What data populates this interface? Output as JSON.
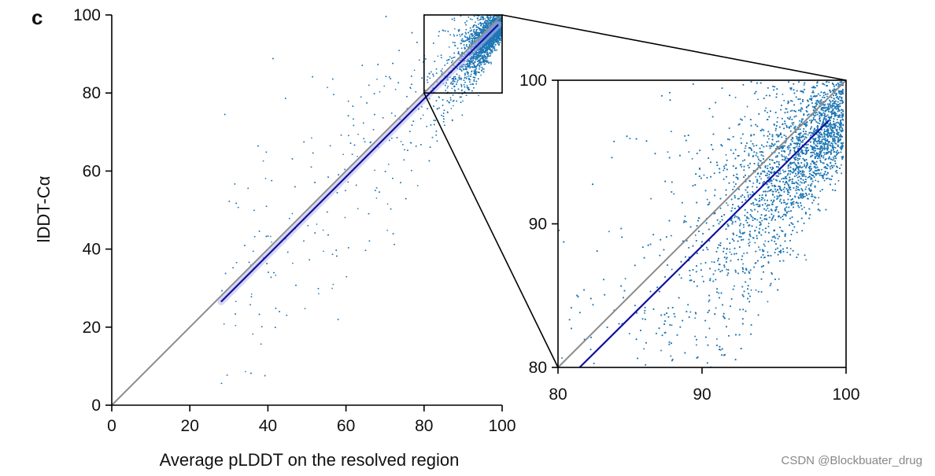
{
  "panel_label": "c",
  "watermark": "CSDN @Blockbuater_drug",
  "chart_data": [
    {
      "type": "scatter",
      "name": "main",
      "title": "",
      "xlabel": "Average pLDDT on the resolved region",
      "ylabel": "lDDT-Cα",
      "xlim": [
        0,
        100
      ],
      "ylim": [
        0,
        100
      ],
      "xticks": [
        "0",
        "20",
        "40",
        "60",
        "80",
        "100"
      ],
      "yticks": [
        "0",
        "20",
        "40",
        "60",
        "80",
        "100"
      ],
      "grid": false,
      "point_color": "#1f77b4",
      "series": [
        {
          "name": "identity",
          "type": "line",
          "color": "#8c8c8c",
          "x": [
            0,
            100
          ],
          "y": [
            0,
            100
          ]
        },
        {
          "name": "fit",
          "type": "line",
          "color": "#10109e",
          "x": [
            28,
            99
          ],
          "y": [
            26.5,
            97.5
          ]
        }
      ],
      "zoom_box": {
        "x": [
          80,
          100
        ],
        "y": [
          80,
          100
        ]
      }
    },
    {
      "type": "scatter",
      "name": "inset",
      "title": "",
      "xlim": [
        80,
        100
      ],
      "ylim": [
        80,
        100
      ],
      "xticks": [
        "80",
        "90",
        "100"
      ],
      "yticks": [
        "80",
        "90",
        "100"
      ],
      "grid": false,
      "point_color": "#1f77b4",
      "series": [
        {
          "name": "identity",
          "type": "line",
          "color": "#8c8c8c",
          "x": [
            80,
            100
          ],
          "y": [
            80,
            100
          ]
        },
        {
          "name": "fit",
          "type": "line",
          "color": "#10109e",
          "x": [
            81.5,
            98.8
          ],
          "y": [
            80,
            97.2
          ]
        }
      ]
    }
  ]
}
